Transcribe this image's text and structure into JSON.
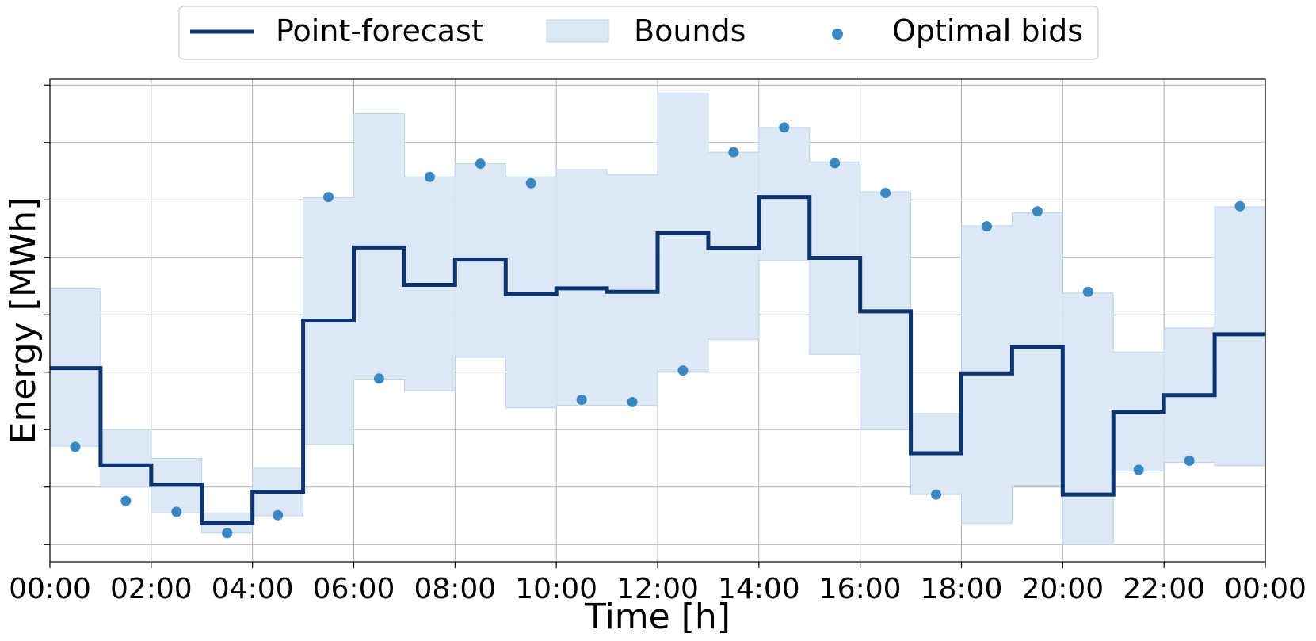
{
  "chart_data": {
    "type": "line",
    "xlabel": "Time [h]",
    "ylabel": "Energy [MWh]",
    "x_tick_labels": [
      "00:00",
      "02:00",
      "04:00",
      "06:00",
      "08:00",
      "10:00",
      "12:00",
      "14:00",
      "16:00",
      "18:00",
      "20:00",
      "22:00",
      "00:00"
    ],
    "xlim": [
      0,
      24
    ],
    "ylim": [
      -0.3,
      8.1
    ],
    "grid": true,
    "legend": {
      "placement": "top-center",
      "entries": [
        "Point-forecast",
        "Bounds",
        "Optimal bids"
      ]
    },
    "hours": [
      0,
      1,
      2,
      3,
      4,
      5,
      6,
      7,
      8,
      9,
      10,
      11,
      12,
      13,
      14,
      15,
      16,
      17,
      18,
      19,
      20,
      21,
      22,
      23
    ],
    "series": [
      {
        "name": "Point-forecast",
        "kind": "step",
        "values": [
          3.07,
          1.38,
          1.04,
          0.38,
          0.92,
          3.9,
          5.17,
          4.52,
          4.96,
          4.36,
          4.46,
          4.4,
          5.42,
          5.16,
          6.05,
          4.99,
          4.06,
          1.59,
          2.98,
          3.44,
          0.87,
          2.31,
          2.6,
          3.66
        ]
      },
      {
        "name": "Bounds",
        "kind": "band",
        "lower": [
          1.71,
          1.0,
          0.55,
          0.2,
          0.5,
          1.75,
          2.88,
          2.68,
          3.26,
          2.38,
          2.42,
          2.42,
          3.02,
          3.57,
          4.95,
          3.31,
          2.0,
          0.87,
          0.37,
          1.03,
          0.0,
          1.28,
          1.43,
          1.37
        ],
        "upper": [
          4.45,
          2.0,
          1.5,
          0.55,
          1.33,
          6.04,
          7.5,
          6.4,
          6.63,
          6.4,
          6.53,
          6.44,
          7.86,
          6.83,
          7.26,
          6.66,
          6.14,
          2.28,
          5.55,
          5.78,
          4.38,
          3.35,
          3.77,
          5.88
        ]
      },
      {
        "name": "Optimal bids",
        "kind": "scatter",
        "x": [
          0.5,
          1.5,
          2.5,
          3.5,
          4.5,
          5.5,
          6.5,
          7.5,
          8.5,
          9.5,
          10.5,
          11.5,
          12.5,
          13.5,
          14.5,
          15.5,
          16.5,
          17.5,
          18.5,
          19.5,
          20.5,
          21.5,
          22.5,
          23.5
        ],
        "values": [
          1.7,
          0.76,
          0.57,
          0.2,
          0.51,
          6.05,
          2.89,
          6.4,
          6.63,
          6.29,
          2.52,
          2.48,
          3.03,
          6.83,
          7.26,
          6.64,
          6.12,
          0.87,
          5.54,
          5.8,
          4.4,
          1.3,
          1.46,
          5.89
        ]
      }
    ],
    "colors": {
      "line": "#0d3370",
      "band": "#dae8f4",
      "band_edge": "#bcd3e8",
      "dots": "#3a87c2",
      "grid": "#b0b0b0"
    }
  }
}
